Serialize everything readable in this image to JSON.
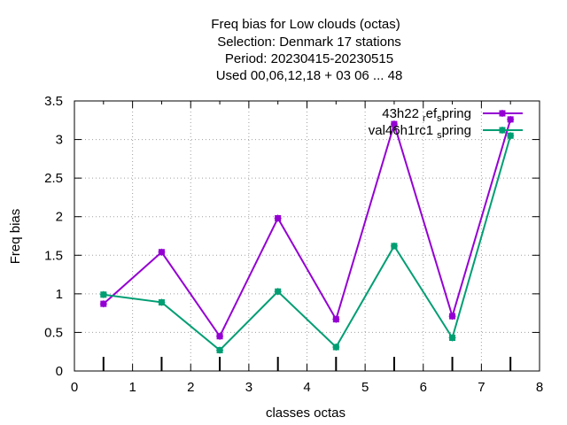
{
  "chart_data": {
    "type": "line",
    "title_lines": [
      "Freq bias  for Low clouds (octas)",
      "Selection: Denmark      17 stations",
      "Period: 20230415-20230515",
      "Used  00,06,12,18  + 03 06 ... 48"
    ],
    "xlabel": "classes octas",
    "ylabel": "Freq bias",
    "xlim": [
      0,
      8
    ],
    "ylim": [
      0,
      3.5
    ],
    "xticks": [
      "0",
      "1",
      "2",
      "3",
      "4",
      "5",
      "6",
      "7",
      "8"
    ],
    "yticks": [
      "0",
      "0.5",
      "1",
      "1.5",
      "2",
      "2.5",
      "3",
      "3.5"
    ],
    "grid": true,
    "legend_position": "top-right",
    "x": [
      0.5,
      1.5,
      2.5,
      3.5,
      4.5,
      5.5,
      6.5,
      7.5
    ],
    "series": [
      {
        "name_main": "43h22",
        "name_sub1": "r",
        "name_mid": "ef",
        "name_sub2": "s",
        "name_end": "pring",
        "color": "#9400d3",
        "values": [
          0.87,
          1.54,
          0.45,
          1.98,
          0.67,
          3.2,
          0.71,
          3.26
        ]
      },
      {
        "name_main": "val46h1rc1",
        "name_sub1": "",
        "name_mid": "",
        "name_sub2": "s",
        "name_end": "pring",
        "color": "#009e73",
        "values": [
          0.99,
          0.89,
          0.27,
          1.03,
          0.31,
          1.62,
          0.43,
          3.05
        ]
      }
    ]
  }
}
